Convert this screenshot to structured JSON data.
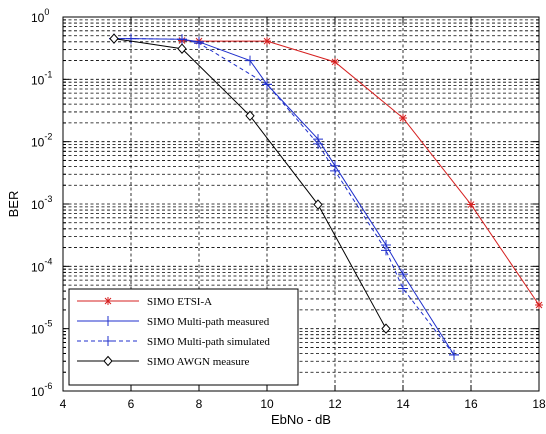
{
  "chart_data": {
    "type": "line",
    "title": "",
    "xlabel": "EbNo - dB",
    "ylabel": "BER",
    "xlim": [
      4,
      18
    ],
    "ylim": [
      1e-06,
      1
    ],
    "y_scale": "log",
    "grid": true,
    "legend_position": "bottom-left",
    "x_ticks": [
      "4",
      "6",
      "8",
      "10",
      "12",
      "14",
      "16",
      "18"
    ],
    "y_ticks": [
      {
        "base": "10",
        "exp": "0",
        "value": 1
      },
      {
        "base": "10",
        "exp": "-1",
        "value": 0.1
      },
      {
        "base": "10",
        "exp": "-2",
        "value": 0.01
      },
      {
        "base": "10",
        "exp": "-3",
        "value": 0.001
      },
      {
        "base": "10",
        "exp": "-4",
        "value": 0.0001
      },
      {
        "base": "10",
        "exp": "-5",
        "value": 1e-05
      },
      {
        "base": "10",
        "exp": "-6",
        "value": 1e-06
      }
    ],
    "series": [
      {
        "name": "SIMO ETSI-A",
        "color": "#d62020",
        "marker": "asterisk",
        "dash": "solid",
        "points": [
          [
            7.5,
            0.42
          ],
          [
            8,
            0.41
          ],
          [
            10,
            0.41
          ],
          [
            12,
            0.19
          ],
          [
            14,
            0.024
          ],
          [
            16,
            0.00098
          ],
          [
            18,
            2.4e-05
          ]
        ]
      },
      {
        "name": "SIMO Multi-path measured",
        "color": "#1f2fcc",
        "marker": "plus",
        "dash": "solid",
        "points": [
          [
            5.5,
            0.45
          ],
          [
            6,
            0.45
          ],
          [
            7.5,
            0.44
          ],
          [
            8,
            0.4
          ],
          [
            9.5,
            0.2
          ],
          [
            10,
            0.083
          ],
          [
            11.5,
            0.011
          ],
          [
            12,
            0.0041
          ],
          [
            13.5,
            0.00022
          ],
          [
            14,
            7.5e-05
          ],
          [
            15.5,
            3.8e-06
          ]
        ]
      },
      {
        "name": "SIMO Multi-path simulated",
        "color": "#1f2fcc",
        "marker": "plus",
        "dash": "dashed",
        "points": [
          [
            5.5,
            0.45
          ],
          [
            6,
            0.45
          ],
          [
            7.5,
            0.44
          ],
          [
            8,
            0.38
          ],
          [
            10,
            0.083
          ],
          [
            11.5,
            0.0092
          ],
          [
            12,
            0.0034
          ],
          [
            13.5,
            0.00018
          ],
          [
            14,
            4.4e-05
          ],
          [
            15.5,
            3.8e-06
          ]
        ]
      },
      {
        "name": "SIMO AWGN measure",
        "color": "#000000",
        "marker": "diamond",
        "dash": "solid",
        "points": [
          [
            5.5,
            0.45
          ],
          [
            7.5,
            0.31
          ],
          [
            9.5,
            0.026
          ],
          [
            11.5,
            0.00098
          ],
          [
            13.5,
            1e-05
          ]
        ]
      }
    ]
  }
}
